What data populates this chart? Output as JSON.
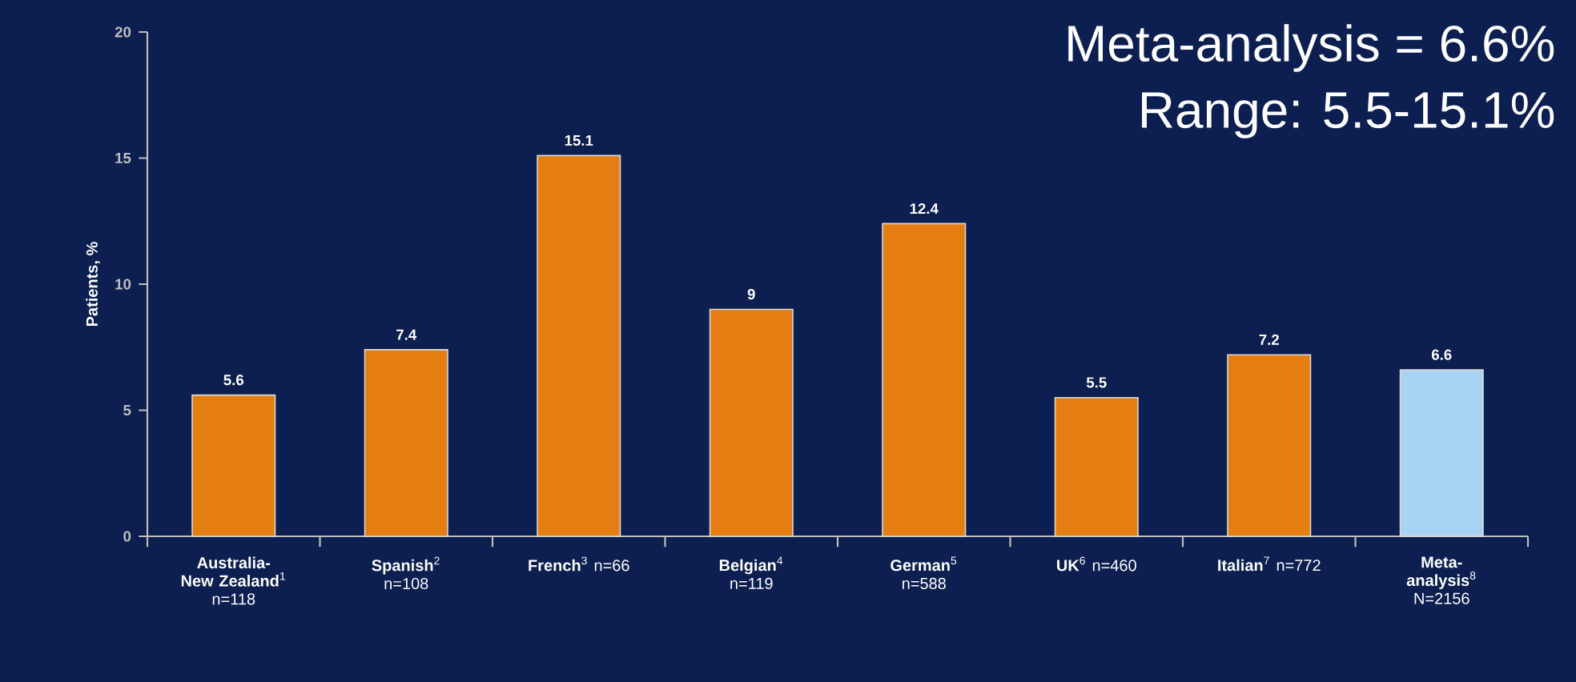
{
  "chart_data": {
    "type": "bar",
    "categories": [
      "**Australia-New Zealand**$^{1}$ n=118",
      "**Spanish**$^{2}$ n=108",
      "**French**$^{3}$ n=66",
      "**Belgian**$^{4}$ n=119",
      "**German**$^{5}$ n=588",
      "**UK**$^{6}$ n=460",
      "**Italian**$^{7}$ n=772",
      "**Meta-analysis**$^{8}$ N=2156"
    ],
    "values": [
      5.6,
      7.4,
      15.1,
      9,
      12.4,
      5.5,
      7.2,
      6.6
    ],
    "colors": [
      "#e57e12",
      "#e57e12",
      "#e57e12",
      "#e57e12",
      "#e57e12",
      "#e57e12",
      "#e57e12",
      "#a9d3f2"
    ],
    "ylabel": "Patients, %",
    "ylim": [
      0,
      20
    ],
    "yticks": [
      0,
      5,
      10,
      15,
      20
    ],
    "data_labels": true,
    "annotations": [
      "Meta-analysis = 6.6%",
      "Range: 5.5-15.1%"
    ]
  }
}
